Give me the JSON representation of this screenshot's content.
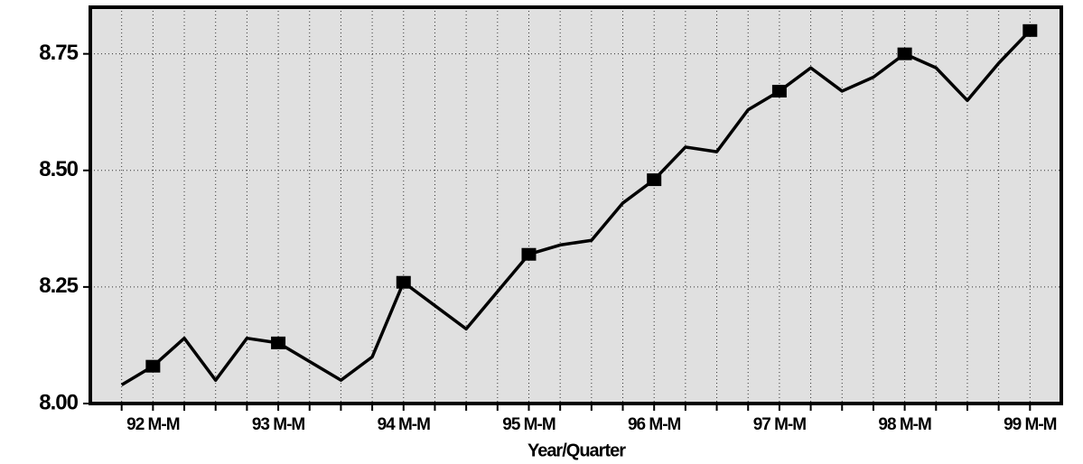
{
  "chart_data": {
    "type": "line",
    "x_label": "Year/Quarter",
    "categories": [
      null,
      "92 M-M",
      null,
      null,
      null,
      "93 M-M",
      null,
      null,
      null,
      "94 M-M",
      null,
      null,
      null,
      "95 M-M",
      null,
      null,
      null,
      "96 M-M",
      null,
      null,
      null,
      "97 M-M",
      null,
      null,
      null,
      "98 M-M",
      null,
      null,
      null,
      "99 M-M"
    ],
    "values": [
      8.04,
      8.08,
      8.14,
      8.05,
      8.14,
      8.13,
      8.09,
      8.05,
      8.1,
      8.26,
      8.21,
      8.16,
      8.24,
      8.32,
      8.34,
      8.35,
      8.43,
      8.48,
      8.55,
      8.54,
      8.63,
      8.67,
      8.72,
      8.67,
      8.7,
      8.75,
      8.72,
      8.65,
      8.73,
      8.8
    ],
    "color": "#000000",
    "ylim": [
      8.0,
      8.85
    ],
    "yticks": [
      {
        "value": 8.0,
        "label": "8.00"
      },
      8.25,
      {
        "value": 8.5,
        "label": "8.50"
      },
      8.75
    ],
    "grid": true
  }
}
